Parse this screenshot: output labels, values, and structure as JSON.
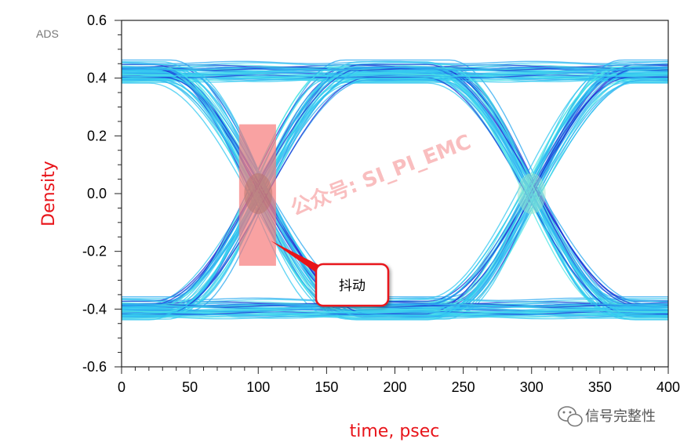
{
  "chart_data": {
    "type": "eye-diagram",
    "xlabel": "time, psec",
    "ylabel": "Density",
    "xlim": [
      0,
      400
    ],
    "ylim": [
      -0.6,
      0.6
    ],
    "x_ticks": [
      "0",
      "50",
      "100",
      "150",
      "200",
      "250",
      "300",
      "350",
      "400"
    ],
    "y_ticks": [
      "0.6",
      "0.4",
      "0.2",
      "0.0",
      "-0.2",
      "-0.4",
      "-0.6"
    ],
    "tool_label": "ADS",
    "high_level": 0.42,
    "low_level": -0.4,
    "crossing_points_psec": [
      100,
      300
    ],
    "crossing_level": 0.0,
    "jitter_region": {
      "x": [
        86,
        113
      ],
      "y": [
        -0.25,
        0.24
      ]
    },
    "annotation": "抖动",
    "colors": {
      "eye_primary": "#33c8f0",
      "eye_secondary": "#1b32d6",
      "axis_title": "#e8141a",
      "highlight": "#f77b7b"
    }
  },
  "watermark": "公众号: SI_PI_EMC",
  "brand": {
    "name": "信号完整性",
    "icon": "wechat-icon"
  }
}
